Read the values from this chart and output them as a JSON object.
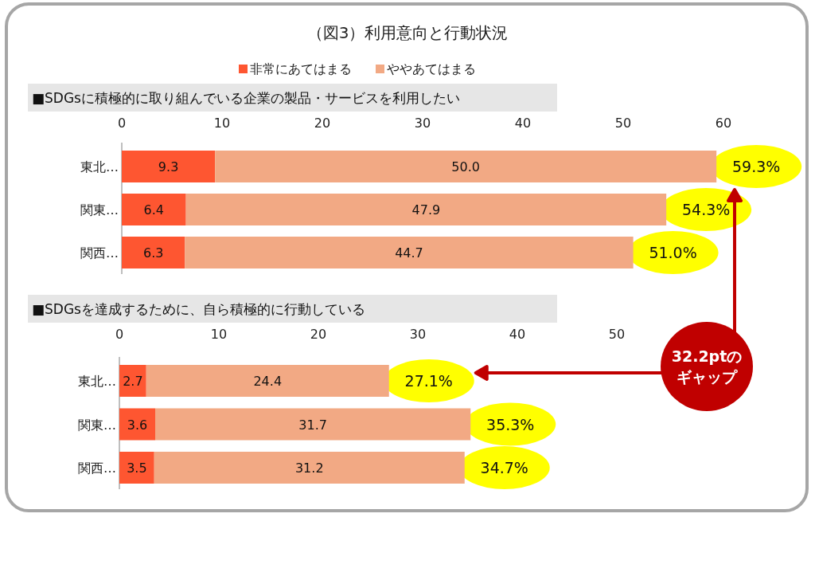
{
  "chart_data": [
    {
      "type": "bar",
      "orientation": "horizontal",
      "stacked": true,
      "title": "（図3）利用意向と行動状況",
      "subtitle": "■SDGsに積極的に取り組んでいる企業の製品・サービスを利用したい",
      "categories": [
        "東北…",
        "関東…",
        "関西…"
      ],
      "series": [
        {
          "name": "非常にあてはまる",
          "color": "#fe5631",
          "values": [
            9.3,
            6.4,
            6.3
          ],
          "value_labels": [
            "9.3",
            "6.4",
            "6.3"
          ]
        },
        {
          "name": "ややあてはまる",
          "color": "#f2a984",
          "values": [
            50.0,
            47.9,
            44.7
          ],
          "value_labels": [
            "50.0",
            "47.9",
            "44.7"
          ]
        }
      ],
      "xlim": [
        0,
        60
      ],
      "xticks": [
        0,
        10,
        20,
        30,
        40,
        50,
        60
      ],
      "totals": [
        "59.3%",
        "54.3%",
        "51.0%"
      ],
      "legend": "top",
      "grid": false
    },
    {
      "type": "bar",
      "orientation": "horizontal",
      "stacked": true,
      "subtitle": "■SDGsを達成するために、自ら積極的に行動している",
      "categories": [
        "東北…",
        "関東…",
        "関西…"
      ],
      "series": [
        {
          "color": "#fe5631",
          "values": [
            2.7,
            3.6,
            3.5
          ],
          "value_labels": [
            "2.7",
            "3.6",
            "3.5"
          ]
        },
        {
          "color": "#f2a984",
          "values": [
            24.4,
            31.7,
            31.2
          ],
          "value_labels": [
            "24.4",
            "31.7",
            "31.2"
          ]
        }
      ],
      "xlim": [
        0,
        50
      ],
      "xticks": [
        0,
        10,
        20,
        30,
        40,
        50
      ],
      "totals": [
        "27.1%",
        "35.3%",
        "34.7%"
      ],
      "annotations": [
        "32.2ptのギャップ"
      ],
      "grid": false
    }
  ]
}
